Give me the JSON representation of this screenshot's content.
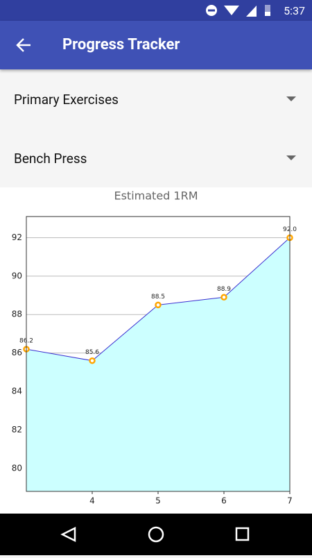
{
  "status_bar": {
    "time": "5:37"
  },
  "app_bar": {
    "title": "Progress Tracker"
  },
  "dropdowns": [
    "Primary Exercises",
    "Bench Press"
  ],
  "chart_data": {
    "type": "line",
    "title": "Estimated 1RM",
    "x": [
      3,
      4,
      5,
      6,
      7
    ],
    "series": [
      {
        "color": "#3a2fd0",
        "fill": "#ccffff",
        "marker_color": "#ffa500",
        "values": [
          86.2,
          85.6,
          88.5,
          88.9,
          92.0
        ],
        "value_labels": [
          "86.2",
          "85.6",
          "88.5",
          "88.9",
          "92.0"
        ]
      }
    ],
    "xlim": [
      3,
      7
    ],
    "xticks": [
      4,
      5,
      6,
      7
    ],
    "ylim": [
      78.8,
      93.1
    ],
    "yticks": [
      80,
      82,
      84,
      86,
      88,
      90,
      92
    ],
    "grid": true
  }
}
